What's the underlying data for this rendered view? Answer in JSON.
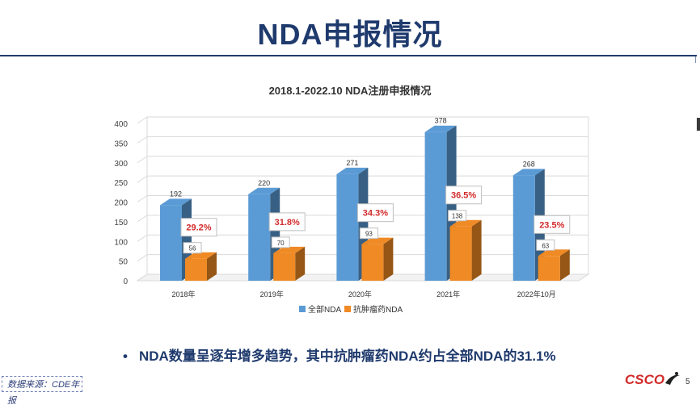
{
  "slide": {
    "title": "NDA申报情况",
    "bullet": "NDA数量呈逐年增多趋势，其中抗肿瘤药NDA约占全部NDA的31.1%",
    "bullet_marker": "•",
    "source": "数据来源：CDE年报",
    "logo": "CSCO",
    "page_number": "5"
  },
  "colors": {
    "title": "#1f3a6d",
    "series_total": "#5b9bd5",
    "series_onc": "#f08a24",
    "pct_text": "#d22a2a"
  },
  "chart_data": {
    "type": "bar",
    "title": "2018.1-2022.10 NDA注册申报情况",
    "categories": [
      "2018年",
      "2019年",
      "2020年",
      "2021年",
      "2022年10月"
    ],
    "series": [
      {
        "name": "全部NDA",
        "values": [
          192,
          220,
          271,
          378,
          268
        ]
      },
      {
        "name": "抗肿瘤药NDA",
        "values": [
          56,
          70,
          93,
          138,
          63
        ]
      }
    ],
    "annotations": [
      "29.2%",
      "31.8%",
      "34.3%",
      "36.5%",
      "23.5%"
    ],
    "yticks": [
      "0",
      "50",
      "100",
      "150",
      "200",
      "250",
      "300",
      "350",
      "400"
    ],
    "ylim": [
      0,
      400
    ],
    "grid": true,
    "legend": "bottom",
    "style": "3d"
  }
}
